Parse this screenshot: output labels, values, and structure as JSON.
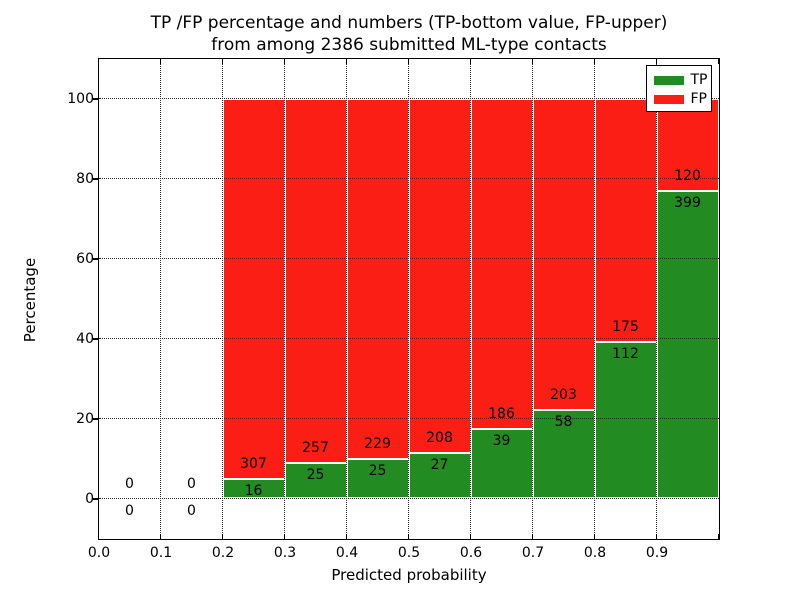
{
  "figure": {
    "title_line1": "TP /FP percentage and numbers (TP-bottom value, FP-upper)",
    "title_line2": "from among 2386 submitted ML-type contacts"
  },
  "chart_data": {
    "type": "bar",
    "variant": "stacked-100-percent",
    "title": "TP /FP percentage and numbers (TP-bottom value, FP-upper) from among 2386 submitted ML-type contacts",
    "xlabel": "Predicted probability",
    "ylabel": "Percentage",
    "xlim": [
      0.0,
      1.0
    ],
    "ylim": [
      -10,
      110
    ],
    "x_tick_values": [
      0.0,
      0.1,
      0.2,
      0.3,
      0.4,
      0.5,
      0.6,
      0.7,
      0.8,
      0.9
    ],
    "x_tick_labels": [
      "0.0",
      "0.1",
      "0.2",
      "0.3",
      "0.4",
      "0.5",
      "0.6",
      "0.7",
      "0.8",
      "0.9"
    ],
    "y_tick_values": [
      0,
      20,
      40,
      60,
      80,
      100
    ],
    "grid": {
      "style": "dotted",
      "vertical": true,
      "horizontal": true,
      "above_bars": true
    },
    "legend_position": "upper right",
    "total_contacts": 2386,
    "bin_width": 0.1,
    "bin_starts": [
      0.0,
      0.1,
      0.2,
      0.3,
      0.4,
      0.5,
      0.6,
      0.7,
      0.8,
      0.9
    ],
    "series": [
      {
        "name": "TP",
        "color": "#228b22",
        "counts": [
          0,
          0,
          16,
          25,
          25,
          27,
          39,
          58,
          112,
          399
        ]
      },
      {
        "name": "FP",
        "color": "#fa1e14",
        "counts": [
          0,
          0,
          307,
          257,
          229,
          208,
          186,
          203,
          175,
          120
        ]
      }
    ],
    "bar_label_rule": "TP count printed below TP/FP boundary, FP count printed above it",
    "colors": {
      "tp": "#228b22",
      "fp": "#fa1e14",
      "grid": "#2a2a2a",
      "text": "#000000",
      "background": "#ffffff"
    }
  }
}
